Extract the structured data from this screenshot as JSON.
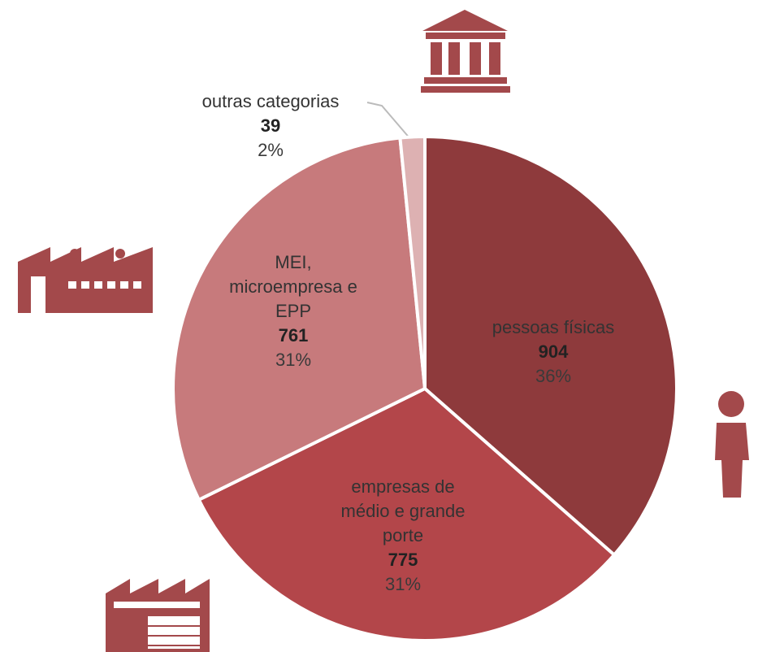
{
  "chart_data": {
    "type": "pie",
    "categories": [
      "pessoas físicas",
      "empresas de médio e grande porte",
      "MEI, microempresa e EPP",
      "outras categorias"
    ],
    "values": [
      904,
      775,
      761,
      39
    ],
    "percent_labels": [
      "36%",
      "31%",
      "31%",
      "2%"
    ],
    "colors": [
      "#8e3a3c",
      "#b3464a",
      "#c77a7c",
      "#ddb1b2"
    ]
  }
}
